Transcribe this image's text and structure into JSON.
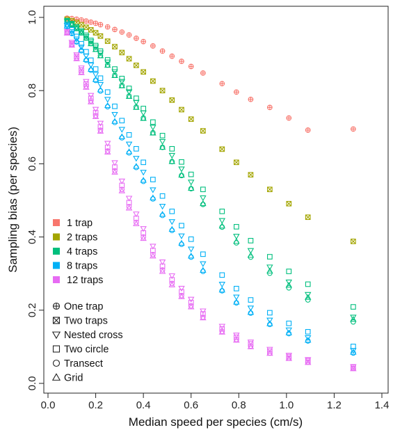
{
  "colors": {
    "1_trap": "#F8766D",
    "2_traps": "#A3A500",
    "4_traps": "#00BF7D",
    "8_traps": "#00B0F6",
    "12_traps": "#E76BF3"
  },
  "chart_data": {
    "type": "scatter",
    "xlabel": "Median speed per species (cm/s)",
    "ylabel": "Sampling bias (per species)",
    "xlim": [
      0.0,
      1.4
    ],
    "ylim": [
      0.0,
      1.0
    ],
    "x_ticks": [
      "0.0",
      "0.2",
      "0.4",
      "0.6",
      "0.8",
      "1.0",
      "1.2",
      "1.4"
    ],
    "y_ticks": [
      "0.0",
      "0.2",
      "0.4",
      "0.6",
      "0.8",
      "1.0"
    ],
    "grid": false,
    "legend_position": "bottom-left",
    "color_legend": [
      {
        "label": "1 trap",
        "color": "#F8766D"
      },
      {
        "label": "2 traps",
        "color": "#A3A500"
      },
      {
        "label": "4 traps",
        "color": "#00BF7D"
      },
      {
        "label": "8 traps",
        "color": "#00B0F6"
      },
      {
        "label": "12 traps",
        "color": "#E76BF3"
      }
    ],
    "shape_legend": [
      {
        "label": "One trap",
        "shape": "circle-plus"
      },
      {
        "label": "Two traps",
        "shape": "square-cross"
      },
      {
        "label": "Nested cross",
        "shape": "triangle-down"
      },
      {
        "label": "Two circle",
        "shape": "square"
      },
      {
        "label": "Transect",
        "shape": "circle"
      },
      {
        "label": "Grid",
        "shape": "triangle-up"
      }
    ],
    "x": [
      0.08,
      0.1,
      0.12,
      0.14,
      0.16,
      0.18,
      0.2,
      0.22,
      0.25,
      0.28,
      0.31,
      0.34,
      0.37,
      0.4,
      0.44,
      0.48,
      0.52,
      0.56,
      0.6,
      0.65,
      0.73,
      0.79,
      0.85,
      0.93,
      1.01,
      1.09,
      1.28
    ],
    "series": [
      {
        "name": "1 trap",
        "color": "#F8766D",
        "points": [
          {
            "shape": "circle-plus",
            "y": [
              0.998,
              0.997,
              0.995,
              0.993,
              0.99,
              0.987,
              0.984,
              0.98,
              0.974,
              0.967,
              0.96,
              0.952,
              0.943,
              0.934,
              0.922,
              0.908,
              0.894,
              0.88,
              0.866,
              0.848,
              0.819,
              0.796,
              0.776,
              0.754,
              0.725,
              0.692,
              0.695
            ]
          }
        ]
      },
      {
        "name": "2 traps",
        "color": "#A3A500",
        "points": [
          {
            "shape": "square-cross",
            "y": [
              0.995,
              0.991,
              0.986,
              0.98,
              0.973,
              0.966,
              0.958,
              0.949,
              0.935,
              0.92,
              0.904,
              0.887,
              0.869,
              0.851,
              0.826,
              0.8,
              0.774,
              0.748,
              0.722,
              0.69,
              0.64,
              0.604,
              0.57,
              0.53,
              0.491,
              0.454,
              0.388
            ]
          }
        ]
      },
      {
        "name": "4 traps",
        "color": "#00BF7D",
        "points": [
          {
            "shape": "triangle-down",
            "y": [
              0.99,
              0.982,
              0.972,
              0.961,
              0.948,
              0.934,
              0.919,
              0.903,
              0.878,
              0.852,
              0.825,
              0.797,
              0.768,
              0.739,
              0.7,
              0.661,
              0.623,
              0.586,
              0.55,
              0.507,
              0.445,
              0.402,
              0.363,
              0.318,
              0.277,
              0.243,
              0.181
            ]
          },
          {
            "shape": "square",
            "y": [
              0.991,
              0.983,
              0.974,
              0.963,
              0.951,
              0.937,
              0.923,
              0.908,
              0.884,
              0.859,
              0.833,
              0.806,
              0.779,
              0.751,
              0.714,
              0.677,
              0.641,
              0.605,
              0.571,
              0.53,
              0.47,
              0.428,
              0.39,
              0.346,
              0.306,
              0.271,
              0.209
            ]
          },
          {
            "shape": "circle",
            "y": [
              0.989,
              0.98,
              0.97,
              0.958,
              0.944,
              0.929,
              0.913,
              0.896,
              0.87,
              0.842,
              0.814,
              0.785,
              0.755,
              0.725,
              0.685,
              0.645,
              0.606,
              0.568,
              0.532,
              0.489,
              0.427,
              0.384,
              0.345,
              0.301,
              0.261,
              0.228,
              0.168
            ]
          },
          {
            "shape": "triangle-up",
            "y": [
              0.989,
              0.98,
              0.969,
              0.957,
              0.943,
              0.928,
              0.912,
              0.895,
              0.869,
              0.841,
              0.813,
              0.784,
              0.754,
              0.724,
              0.684,
              0.645,
              0.606,
              0.569,
              0.533,
              0.491,
              0.43,
              0.388,
              0.35,
              0.307,
              0.268,
              0.235,
              0.175
            ]
          }
        ]
      },
      {
        "name": "8 traps",
        "color": "#00B0F6",
        "points": [
          {
            "shape": "triangle-down",
            "y": [
              0.978,
              0.961,
              0.941,
              0.919,
              0.895,
              0.87,
              0.844,
              0.817,
              0.776,
              0.735,
              0.694,
              0.654,
              0.615,
              0.577,
              0.529,
              0.484,
              0.442,
              0.403,
              0.367,
              0.327,
              0.271,
              0.236,
              0.206,
              0.173,
              0.146,
              0.125,
              0.09
            ]
          },
          {
            "shape": "square",
            "y": [
              0.981,
              0.966,
              0.948,
              0.928,
              0.906,
              0.883,
              0.859,
              0.834,
              0.796,
              0.757,
              0.718,
              0.679,
              0.641,
              0.604,
              0.557,
              0.512,
              0.47,
              0.431,
              0.394,
              0.353,
              0.296,
              0.259,
              0.228,
              0.193,
              0.164,
              0.141,
              0.101
            ]
          },
          {
            "shape": "circle",
            "y": [
              0.975,
              0.956,
              0.933,
              0.909,
              0.883,
              0.856,
              0.828,
              0.799,
              0.756,
              0.713,
              0.671,
              0.63,
              0.59,
              0.552,
              0.504,
              0.459,
              0.418,
              0.38,
              0.345,
              0.306,
              0.253,
              0.22,
              0.192,
              0.161,
              0.136,
              0.116,
              0.083
            ]
          },
          {
            "shape": "triangle-up",
            "y": [
              0.976,
              0.957,
              0.935,
              0.911,
              0.885,
              0.858,
              0.83,
              0.802,
              0.759,
              0.716,
              0.674,
              0.633,
              0.593,
              0.555,
              0.507,
              0.462,
              0.421,
              0.383,
              0.348,
              0.309,
              0.255,
              0.222,
              0.194,
              0.163,
              0.138,
              0.118,
              0.085
            ]
          }
        ]
      },
      {
        "name": "12 traps",
        "color": "#E76BF3",
        "points": [
          {
            "shape": "triangle-down",
            "y": [
              0.962,
              0.932,
              0.898,
              0.862,
              0.825,
              0.787,
              0.749,
              0.711,
              0.656,
              0.603,
              0.553,
              0.506,
              0.463,
              0.423,
              0.375,
              0.332,
              0.294,
              0.26,
              0.23,
              0.198,
              0.156,
              0.132,
              0.113,
              0.093,
              0.077,
              0.065,
              0.046
            ]
          },
          {
            "shape": "square",
            "y": [
              0.96,
              0.928,
              0.893,
              0.856,
              0.818,
              0.779,
              0.74,
              0.701,
              0.645,
              0.591,
              0.541,
              0.494,
              0.451,
              0.411,
              0.363,
              0.32,
              0.283,
              0.25,
              0.221,
              0.19,
              0.149,
              0.126,
              0.108,
              0.088,
              0.073,
              0.062,
              0.044
            ]
          },
          {
            "shape": "circle",
            "y": [
              0.958,
              0.925,
              0.889,
              0.851,
              0.812,
              0.772,
              0.732,
              0.692,
              0.635,
              0.581,
              0.53,
              0.483,
              0.44,
              0.4,
              0.352,
              0.31,
              0.273,
              0.24,
              0.212,
              0.181,
              0.142,
              0.12,
              0.102,
              0.083,
              0.069,
              0.058,
              0.041
            ]
          },
          {
            "shape": "triangle-up",
            "y": [
              0.957,
              0.924,
              0.887,
              0.849,
              0.809,
              0.769,
              0.729,
              0.689,
              0.632,
              0.577,
              0.526,
              0.479,
              0.436,
              0.396,
              0.348,
              0.306,
              0.269,
              0.237,
              0.209,
              0.179,
              0.14,
              0.118,
              0.1,
              0.082,
              0.068,
              0.057,
              0.04
            ]
          }
        ]
      }
    ]
  }
}
